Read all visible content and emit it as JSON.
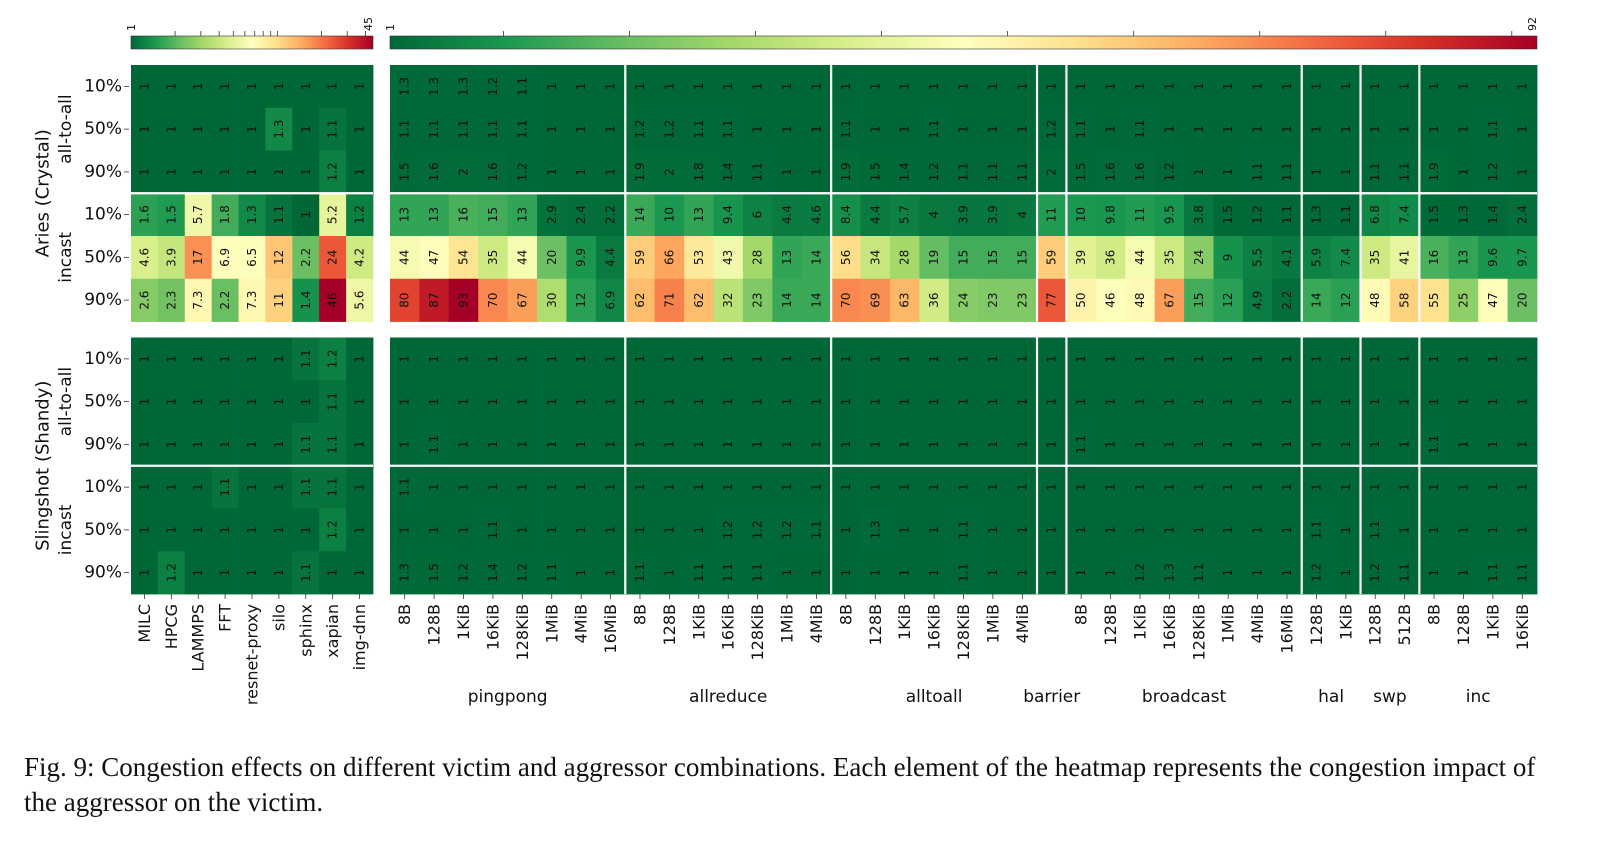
{
  "chart_data": {
    "type": "heatmap",
    "title": "",
    "color_scales": {
      "apps": {
        "min": 1,
        "max": 45,
        "colorbar_label_min": "1",
        "colorbar_label_max": "45",
        "scale": "log"
      },
      "micro": {
        "min": 1,
        "max": 92,
        "colorbar_label_min": "1",
        "colorbar_label_max": "92",
        "scale": "linear"
      }
    },
    "colormap": [
      "#006837",
      "#1a9850",
      "#66bd63",
      "#a6d96a",
      "#d9ef8b",
      "#ffffbf",
      "#fee08b",
      "#fdae61",
      "#f46d43",
      "#d73027",
      "#a50026"
    ],
    "systems": [
      {
        "label": "Aries (Crystal)",
        "patterns": [
          "all-to-all",
          "incast"
        ]
      },
      {
        "label": "Slingshot (Shandy)",
        "patterns": [
          "all-to-all",
          "incast"
        ]
      }
    ],
    "row_labels": [
      "10%",
      "50%",
      "90%"
    ],
    "app_columns": [
      "MILC",
      "HPCG",
      "LAMMPS",
      "FFT",
      "resnet-proxy",
      "silo",
      "sphinx",
      "xapian",
      "img-dnn"
    ],
    "micro_groups": [
      {
        "name": "pingpong",
        "columns": [
          "8B",
          "128B",
          "1KiB",
          "16KiB",
          "128KiB",
          "1MiB",
          "4MiB",
          "16MiB"
        ]
      },
      {
        "name": "allreduce",
        "columns": [
          "8B",
          "128B",
          "1KiB",
          "16KiB",
          "128KiB",
          "1MiB",
          "4MiB"
        ]
      },
      {
        "name": "alltoall",
        "columns": [
          "8B",
          "128B",
          "1KiB",
          "16KiB",
          "128KiB",
          "1MiB",
          "4MiB"
        ]
      },
      {
        "name": "barrier",
        "columns": [
          ""
        ]
      },
      {
        "name": "broadcast",
        "columns": [
          "8B",
          "128B",
          "1KiB",
          "16KiB",
          "128KiB",
          "1MiB",
          "4MiB",
          "16MiB"
        ]
      },
      {
        "name": "hal",
        "columns": [
          "128B",
          "1KiB"
        ]
      },
      {
        "name": "swp",
        "columns": [
          "128B",
          "512B"
        ]
      },
      {
        "name": "inc",
        "columns": [
          "8B",
          "128B",
          "1KiB",
          "16KiB"
        ]
      }
    ],
    "values": [
      [
        "1",
        "1",
        "1",
        "1",
        "1",
        "1",
        "1",
        "1",
        "1",
        "1.3",
        "1.3",
        "1.3",
        "1.2",
        "1.1",
        "1",
        "1",
        "1",
        "1",
        "1",
        "1",
        "1",
        "1",
        "1",
        "1",
        "1",
        "1",
        "1",
        "1",
        "1",
        "1",
        "1",
        "1",
        "1",
        "1",
        "1",
        "1",
        "1",
        "1",
        "1",
        "1",
        "1",
        "1",
        "1",
        "1",
        "1",
        "1",
        "1",
        "1"
      ],
      [
        "1",
        "1",
        "1",
        "1",
        "1",
        "1.3",
        "1",
        "1.1",
        "1",
        "1.1",
        "1.1",
        "1.1",
        "1.1",
        "1.1",
        "1",
        "1",
        "1",
        "1.2",
        "1.2",
        "1.1",
        "1.1",
        "1",
        "1",
        "1",
        "1.1",
        "1",
        "1",
        "1.1",
        "1",
        "1",
        "1",
        "1.2",
        "1.1",
        "1",
        "1.1",
        "1",
        "1",
        "1",
        "1",
        "1",
        "1",
        "1",
        "1",
        "1",
        "1",
        "1",
        "1.1",
        "1"
      ],
      [
        "1",
        "1",
        "1",
        "1",
        "1",
        "1",
        "1",
        "1.2",
        "1",
        "1.5",
        "1.6",
        "2",
        "1.6",
        "1.2",
        "1",
        "1",
        "1",
        "1.9",
        "2",
        "1.8",
        "1.4",
        "1.1",
        "1",
        "1",
        "1.9",
        "1.5",
        "1.4",
        "1.2",
        "1.1",
        "1.1",
        "1.1",
        "2",
        "1.5",
        "1.6",
        "1.6",
        "1.2",
        "1",
        "1",
        "1.1",
        "1.1",
        "1",
        "1",
        "1.1",
        "1.1",
        "1.9",
        "1",
        "1.2",
        "1"
      ],
      [
        "1.6",
        "1.5",
        "5.7",
        "1.8",
        "1.3",
        "1.1",
        "1",
        "5.2",
        "1.2",
        "13",
        "13",
        "16",
        "15",
        "13",
        "2.9",
        "2.4",
        "2.2",
        "14",
        "10",
        "13",
        "9.4",
        "6",
        "4.4",
        "4.6",
        "8.4",
        "4.4",
        "5.7",
        "4",
        "3.9",
        "3.9",
        "4",
        "11",
        "10",
        "9.8",
        "11",
        "9.5",
        "3.8",
        "1.5",
        "1.2",
        "1.1",
        "1.3",
        "1.1",
        "6.8",
        "7.4",
        "1.5",
        "1.3",
        "1.4",
        "2.4"
      ],
      [
        "4.6",
        "3.9",
        "17",
        "6.9",
        "6.5",
        "12",
        "2.2",
        "24",
        "4.2",
        "44",
        "47",
        "54",
        "35",
        "44",
        "20",
        "9.9",
        "4.4",
        "59",
        "66",
        "53",
        "43",
        "28",
        "13",
        "14",
        "56",
        "34",
        "28",
        "19",
        "15",
        "15",
        "15",
        "59",
        "39",
        "36",
        "44",
        "35",
        "24",
        "9",
        "5.5",
        "4.1",
        "5.9",
        "7.4",
        "35",
        "41",
        "16",
        "13",
        "9.6",
        "9.7"
      ],
      [
        "2.6",
        "2.3",
        "7.3",
        "2.2",
        "7.3",
        "11",
        "1.4",
        "46",
        "5.6",
        "80",
        "87",
        "93",
        "70",
        "67",
        "30",
        "12",
        "6.9",
        "62",
        "71",
        "62",
        "32",
        "23",
        "14",
        "14",
        "70",
        "69",
        "63",
        "36",
        "24",
        "23",
        "23",
        "77",
        "50",
        "46",
        "48",
        "67",
        "15",
        "12",
        "4.9",
        "2.2",
        "14",
        "12",
        "48",
        "58",
        "55",
        "25",
        "47",
        "20"
      ],
      [
        "1",
        "1",
        "1",
        "1",
        "1",
        "1",
        "1.1",
        "1.2",
        "1",
        "1",
        "1",
        "1",
        "1",
        "1",
        "1",
        "1",
        "1",
        "1",
        "1",
        "1",
        "1",
        "1",
        "1",
        "1",
        "1",
        "1",
        "1",
        "1",
        "1",
        "1",
        "1",
        "1",
        "1",
        "1",
        "1",
        "1",
        "1",
        "1",
        "1",
        "1",
        "1",
        "1",
        "1",
        "1",
        "1",
        "1",
        "1",
        "1"
      ],
      [
        "1",
        "1",
        "1",
        "1",
        "1",
        "1",
        "1",
        "1.1",
        "1",
        "1",
        "1",
        "1",
        "1",
        "1",
        "1",
        "1",
        "1",
        "1",
        "1",
        "1",
        "1",
        "1",
        "1",
        "1",
        "1",
        "1",
        "1",
        "1",
        "1",
        "1",
        "1",
        "1",
        "1",
        "1",
        "1",
        "1",
        "1",
        "1",
        "1",
        "1",
        "1",
        "1",
        "1",
        "1",
        "1",
        "1",
        "1",
        "1"
      ],
      [
        "1",
        "1",
        "1",
        "1",
        "1",
        "1",
        "1.1",
        "1.1",
        "1",
        "1",
        "1.1",
        "1",
        "1",
        "1",
        "1",
        "1",
        "1",
        "1",
        "1",
        "1",
        "1",
        "1",
        "1",
        "1",
        "1",
        "1",
        "1",
        "1",
        "1",
        "1",
        "1",
        "1",
        "1.1",
        "1",
        "1",
        "1",
        "1",
        "1",
        "1",
        "1",
        "1",
        "1",
        "1",
        "1",
        "1.1",
        "1",
        "1",
        "1"
      ],
      [
        "1",
        "1",
        "1",
        "1.1",
        "1",
        "1",
        "1.1",
        "1.1",
        "1",
        "1.1",
        "1",
        "1",
        "1",
        "1",
        "1",
        "1",
        "1",
        "1",
        "1",
        "1",
        "1",
        "1",
        "1",
        "1",
        "1",
        "1",
        "1",
        "1",
        "1",
        "1",
        "1",
        "1",
        "1",
        "1",
        "1",
        "1",
        "1",
        "1",
        "1",
        "1",
        "1",
        "1",
        "1",
        "1",
        "1",
        "1",
        "1",
        "1"
      ],
      [
        "1",
        "1",
        "1",
        "1",
        "1",
        "1",
        "1",
        "1.2",
        "1",
        "1",
        "1",
        "1",
        "1.1",
        "1",
        "1",
        "1",
        "1",
        "1",
        "1",
        "1",
        "1.2",
        "1.2",
        "1.2",
        "1.1",
        "1",
        "1.3",
        "1",
        "1",
        "1.1",
        "1",
        "1",
        "1",
        "1",
        "1",
        "1",
        "1",
        "1",
        "1",
        "1",
        "1",
        "1.1",
        "1",
        "1.1",
        "1",
        "1",
        "1",
        "1",
        "1"
      ],
      [
        "1",
        "1.2",
        "1",
        "1",
        "1",
        "1",
        "1.1",
        "1",
        "1",
        "1.3",
        "1.5",
        "1.2",
        "1.4",
        "1.2",
        "1.1",
        "1",
        "1",
        "1.1",
        "1",
        "1.1",
        "1.1",
        "1.1",
        "1",
        "1",
        "1",
        "1",
        "1",
        "1",
        "1.1",
        "1",
        "1",
        "1",
        "1",
        "1",
        "1.2",
        "1.3",
        "1.1",
        "1",
        "1",
        "1",
        "1.2",
        "1",
        "1.2",
        "1.1",
        "1",
        "1",
        "1.1",
        "1.1"
      ]
    ]
  },
  "caption": "Fig. 9: Congestion effects on different victim and aggressor combinations. Each element of the heatmap represents the congestion impact of the aggressor on the victim."
}
